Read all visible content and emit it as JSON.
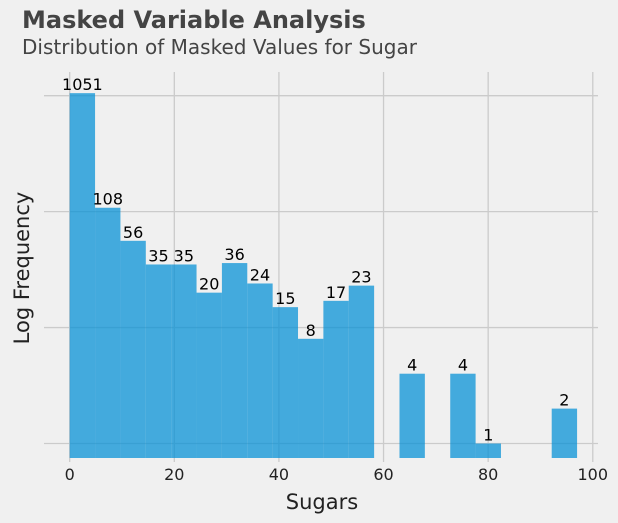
{
  "chart_data": {
    "type": "bar",
    "title": "Masked Variable Analysis",
    "subtitle": "Distribution of Masked Values for Sugar",
    "xlabel": "Sugars",
    "ylabel": "Log Frequency",
    "xlim": [
      -3,
      101
    ],
    "xticks": [
      0,
      20,
      40,
      60,
      80,
      100
    ],
    "y_scale": "log",
    "ylim": [
      0.75,
      1600
    ],
    "grid": true,
    "bar_color": "#008fd5",
    "bins": [
      {
        "x0": 0.0,
        "x1": 4.85,
        "count": 1051
      },
      {
        "x0": 4.85,
        "x1": 9.7,
        "count": 108
      },
      {
        "x0": 9.7,
        "x1": 14.55,
        "count": 56
      },
      {
        "x0": 14.55,
        "x1": 19.4,
        "count": 35
      },
      {
        "x0": 19.4,
        "x1": 24.25,
        "count": 35
      },
      {
        "x0": 24.25,
        "x1": 29.1,
        "count": 20
      },
      {
        "x0": 29.1,
        "x1": 33.95,
        "count": 36
      },
      {
        "x0": 33.95,
        "x1": 38.8,
        "count": 24
      },
      {
        "x0": 38.8,
        "x1": 43.65,
        "count": 15
      },
      {
        "x0": 43.65,
        "x1": 48.5,
        "count": 8
      },
      {
        "x0": 48.5,
        "x1": 53.35,
        "count": 17
      },
      {
        "x0": 53.35,
        "x1": 58.2,
        "count": 23
      },
      {
        "x0": 63.05,
        "x1": 67.9,
        "count": 4
      },
      {
        "x0": 72.75,
        "x1": 77.6,
        "count": 4
      },
      {
        "x0": 77.6,
        "x1": 82.45,
        "count": 1
      },
      {
        "x0": 92.15,
        "x1": 97.0,
        "count": 2
      }
    ]
  }
}
